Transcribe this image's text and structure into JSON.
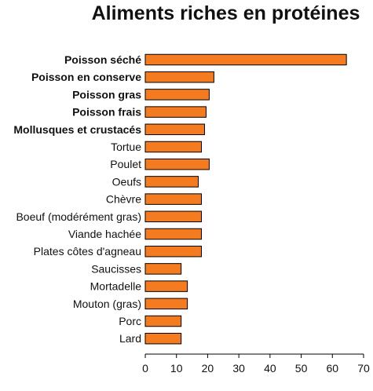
{
  "chart_data": {
    "type": "bar",
    "orientation": "horizontal",
    "title": "Aliments riches en protéines",
    "xlabel": "",
    "ylabel": "",
    "xlim": [
      0,
      70
    ],
    "ticks": [
      0,
      10,
      20,
      30,
      40,
      50,
      60,
      70
    ],
    "grid": false,
    "bar_color": "#f47b20",
    "categories": [
      "Poisson séché",
      "Poisson en conserve",
      "Poisson gras",
      "Poisson frais",
      "Mollusques et crustacés",
      "Tortue",
      "Poulet",
      "Oeufs",
      "Chèvre",
      "Boeuf (modérément gras)",
      "Viande hachée",
      "Plates côtes d'agneau",
      "Saucisses",
      "Mortadelle",
      "Mouton (gras)",
      "Porc",
      "Lard"
    ],
    "bold_categories": [
      "Poisson séché",
      "Poisson en conserve",
      "Poisson gras",
      "Poisson frais",
      "Mollusques et crustacés"
    ],
    "values": [
      64.5,
      22,
      20.5,
      19.5,
      19,
      18,
      20.5,
      17,
      18,
      18,
      18,
      18,
      11.5,
      13.5,
      13.5,
      11.5,
      11.5
    ]
  }
}
